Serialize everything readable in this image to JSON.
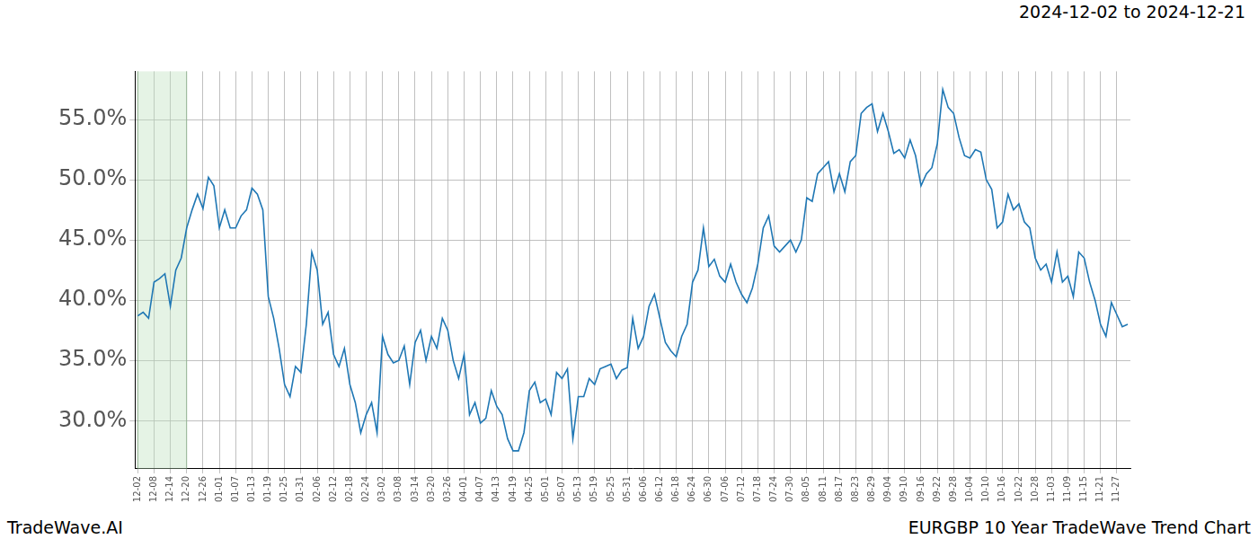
{
  "chart_data": {
    "type": "line",
    "title": "2024-12-02 to 2024-12-21",
    "footer_left": "TradeWave.AI",
    "footer_right": "EURGBP 10 Year TradeWave Trend Chart",
    "highlight": {
      "start": "12-02",
      "end": "12-20"
    },
    "color": "#1f77b4",
    "grid": true,
    "ylim": [
      26,
      59
    ],
    "yticks": [
      {
        "value": 30,
        "label": "30.0%"
      },
      {
        "value": 35,
        "label": "35.0%"
      },
      {
        "value": 40,
        "label": "40.0%"
      },
      {
        "value": 45,
        "label": "45.0%"
      },
      {
        "value": 50,
        "label": "50.0%"
      },
      {
        "value": 55,
        "label": "55.0%"
      }
    ],
    "categories": [
      "12-02",
      null,
      null,
      "12-08",
      null,
      null,
      "12-14",
      null,
      null,
      "12-20",
      null,
      null,
      "12-26",
      null,
      null,
      "01-01",
      null,
      null,
      "01-07",
      null,
      null,
      "01-13",
      null,
      null,
      "01-19",
      null,
      null,
      "01-25",
      null,
      null,
      "01-31",
      null,
      null,
      "02-06",
      null,
      null,
      "02-12",
      null,
      null,
      "02-18",
      null,
      null,
      "02-24",
      null,
      null,
      "03-02",
      null,
      null,
      "03-08",
      null,
      null,
      "03-14",
      null,
      null,
      "03-20",
      null,
      null,
      "03-26",
      null,
      null,
      "04-01",
      null,
      null,
      "04-07",
      null,
      null,
      "04-13",
      null,
      null,
      "04-19",
      null,
      null,
      "04-25",
      null,
      null,
      "05-01",
      null,
      null,
      "05-07",
      null,
      null,
      "05-13",
      null,
      null,
      "05-19",
      null,
      null,
      "05-25",
      null,
      null,
      "05-31",
      null,
      null,
      "06-06",
      null,
      null,
      "06-12",
      null,
      null,
      "06-18",
      null,
      null,
      "06-24",
      null,
      null,
      "06-30",
      null,
      null,
      "07-06",
      null,
      null,
      "07-12",
      null,
      null,
      "07-18",
      null,
      null,
      "07-24",
      null,
      null,
      "07-30",
      null,
      null,
      "08-05",
      null,
      null,
      "08-11",
      null,
      null,
      "08-17",
      null,
      null,
      "08-23",
      null,
      null,
      "08-29",
      null,
      null,
      "09-04",
      null,
      null,
      "09-10",
      null,
      null,
      "09-16",
      null,
      null,
      "09-22",
      null,
      null,
      "09-28",
      null,
      null,
      "10-04",
      null,
      null,
      "10-10",
      null,
      null,
      "10-16",
      null,
      null,
      "10-22",
      null,
      null,
      "10-28",
      null,
      null,
      "11-03",
      null,
      null,
      "11-09",
      null,
      null,
      "11-15",
      null,
      null,
      "11-21",
      null,
      null,
      "11-27",
      null,
      null
    ],
    "values": [
      38.7,
      39.0,
      38.5,
      41.5,
      41.8,
      42.2,
      39.5,
      42.5,
      43.5,
      46.0,
      47.5,
      48.8,
      47.6,
      50.2,
      49.5,
      46.0,
      47.5,
      46.0,
      46.0,
      47.0,
      47.5,
      49.3,
      48.8,
      47.5,
      40.3,
      38.5,
      36.0,
      33.0,
      32.0,
      34.5,
      34.0,
      38.0,
      44.0,
      42.5,
      38.0,
      39.0,
      35.5,
      34.5,
      36.0,
      33.0,
      31.5,
      29.0,
      30.5,
      31.5,
      29.0,
      37.0,
      35.5,
      34.8,
      35.0,
      36.2,
      33.0,
      36.5,
      37.5,
      35.0,
      37.0,
      36.0,
      38.5,
      37.5,
      35.0,
      33.5,
      35.5,
      30.5,
      31.5,
      29.8,
      30.2,
      32.5,
      31.2,
      30.5,
      28.5,
      27.5,
      27.5,
      29.0,
      32.5,
      33.2,
      31.5,
      31.8,
      30.5,
      34.0,
      33.5,
      34.3,
      28.5,
      32.0,
      32.0,
      33.5,
      33.0,
      34.3,
      34.5,
      34.7,
      33.5,
      34.2,
      34.4,
      38.5,
      36.0,
      37.0,
      39.5,
      40.5,
      38.5,
      36.5,
      35.8,
      35.3,
      37.0,
      38.0,
      41.5,
      42.5,
      46.0,
      42.8,
      43.4,
      42.0,
      41.5,
      43.0,
      41.5,
      40.5,
      39.8,
      41.0,
      43.0,
      46.0,
      47.0,
      44.5,
      44.0,
      44.5,
      45.0,
      44.0,
      45.0,
      48.5,
      48.2,
      50.5,
      51.0,
      51.5,
      49.0,
      50.5,
      49.0,
      51.5,
      52.0,
      55.5,
      56.0,
      56.3,
      54.0,
      55.5,
      54.0,
      52.2,
      52.5,
      51.8,
      53.3,
      52.0,
      49.5,
      50.5,
      51.0,
      53.0,
      57.5,
      56.0,
      55.5,
      53.5,
      52.0,
      51.8,
      52.5,
      52.3,
      50.0,
      49.2,
      46.0,
      46.5,
      48.8,
      47.5,
      48.0,
      46.5,
      46.0,
      43.5,
      42.5,
      43.0,
      41.5,
      44.0,
      41.5,
      42.0,
      40.3,
      44.0,
      43.5,
      41.5,
      40.0,
      38.0,
      37.0,
      39.8,
      38.8,
      37.8,
      38.0
    ]
  }
}
